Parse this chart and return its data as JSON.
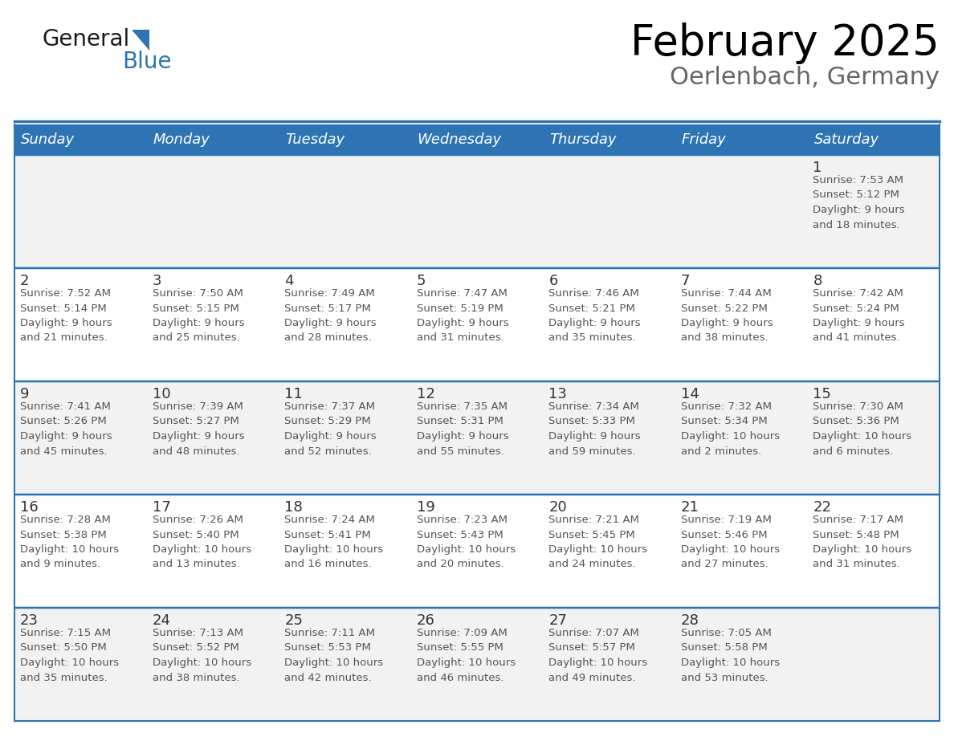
{
  "title": "February 2025",
  "subtitle": "Oerlenbach, Germany",
  "days_of_week": [
    "Sunday",
    "Monday",
    "Tuesday",
    "Wednesday",
    "Thursday",
    "Friday",
    "Saturday"
  ],
  "header_bg": "#2E74B5",
  "header_text_color": "#FFFFFF",
  "cell_bg_odd": "#F2F2F2",
  "cell_bg_even": "#FFFFFF",
  "border_color": "#2E74B5",
  "title_color": "#000000",
  "subtitle_color": "#666666",
  "info_text_color": "#555555",
  "day_num_color": "#333333",
  "logo_blue_color": "#2E74B5",
  "logo_black_color": "#1A1A1A",
  "calendar_data": [
    [
      {
        "day": null,
        "info": null
      },
      {
        "day": null,
        "info": null
      },
      {
        "day": null,
        "info": null
      },
      {
        "day": null,
        "info": null
      },
      {
        "day": null,
        "info": null
      },
      {
        "day": null,
        "info": null
      },
      {
        "day": 1,
        "info": "Sunrise: 7:53 AM\nSunset: 5:12 PM\nDaylight: 9 hours\nand 18 minutes."
      }
    ],
    [
      {
        "day": 2,
        "info": "Sunrise: 7:52 AM\nSunset: 5:14 PM\nDaylight: 9 hours\nand 21 minutes."
      },
      {
        "day": 3,
        "info": "Sunrise: 7:50 AM\nSunset: 5:15 PM\nDaylight: 9 hours\nand 25 minutes."
      },
      {
        "day": 4,
        "info": "Sunrise: 7:49 AM\nSunset: 5:17 PM\nDaylight: 9 hours\nand 28 minutes."
      },
      {
        "day": 5,
        "info": "Sunrise: 7:47 AM\nSunset: 5:19 PM\nDaylight: 9 hours\nand 31 minutes."
      },
      {
        "day": 6,
        "info": "Sunrise: 7:46 AM\nSunset: 5:21 PM\nDaylight: 9 hours\nand 35 minutes."
      },
      {
        "day": 7,
        "info": "Sunrise: 7:44 AM\nSunset: 5:22 PM\nDaylight: 9 hours\nand 38 minutes."
      },
      {
        "day": 8,
        "info": "Sunrise: 7:42 AM\nSunset: 5:24 PM\nDaylight: 9 hours\nand 41 minutes."
      }
    ],
    [
      {
        "day": 9,
        "info": "Sunrise: 7:41 AM\nSunset: 5:26 PM\nDaylight: 9 hours\nand 45 minutes."
      },
      {
        "day": 10,
        "info": "Sunrise: 7:39 AM\nSunset: 5:27 PM\nDaylight: 9 hours\nand 48 minutes."
      },
      {
        "day": 11,
        "info": "Sunrise: 7:37 AM\nSunset: 5:29 PM\nDaylight: 9 hours\nand 52 minutes."
      },
      {
        "day": 12,
        "info": "Sunrise: 7:35 AM\nSunset: 5:31 PM\nDaylight: 9 hours\nand 55 minutes."
      },
      {
        "day": 13,
        "info": "Sunrise: 7:34 AM\nSunset: 5:33 PM\nDaylight: 9 hours\nand 59 minutes."
      },
      {
        "day": 14,
        "info": "Sunrise: 7:32 AM\nSunset: 5:34 PM\nDaylight: 10 hours\nand 2 minutes."
      },
      {
        "day": 15,
        "info": "Sunrise: 7:30 AM\nSunset: 5:36 PM\nDaylight: 10 hours\nand 6 minutes."
      }
    ],
    [
      {
        "day": 16,
        "info": "Sunrise: 7:28 AM\nSunset: 5:38 PM\nDaylight: 10 hours\nand 9 minutes."
      },
      {
        "day": 17,
        "info": "Sunrise: 7:26 AM\nSunset: 5:40 PM\nDaylight: 10 hours\nand 13 minutes."
      },
      {
        "day": 18,
        "info": "Sunrise: 7:24 AM\nSunset: 5:41 PM\nDaylight: 10 hours\nand 16 minutes."
      },
      {
        "day": 19,
        "info": "Sunrise: 7:23 AM\nSunset: 5:43 PM\nDaylight: 10 hours\nand 20 minutes."
      },
      {
        "day": 20,
        "info": "Sunrise: 7:21 AM\nSunset: 5:45 PM\nDaylight: 10 hours\nand 24 minutes."
      },
      {
        "day": 21,
        "info": "Sunrise: 7:19 AM\nSunset: 5:46 PM\nDaylight: 10 hours\nand 27 minutes."
      },
      {
        "day": 22,
        "info": "Sunrise: 7:17 AM\nSunset: 5:48 PM\nDaylight: 10 hours\nand 31 minutes."
      }
    ],
    [
      {
        "day": 23,
        "info": "Sunrise: 7:15 AM\nSunset: 5:50 PM\nDaylight: 10 hours\nand 35 minutes."
      },
      {
        "day": 24,
        "info": "Sunrise: 7:13 AM\nSunset: 5:52 PM\nDaylight: 10 hours\nand 38 minutes."
      },
      {
        "day": 25,
        "info": "Sunrise: 7:11 AM\nSunset: 5:53 PM\nDaylight: 10 hours\nand 42 minutes."
      },
      {
        "day": 26,
        "info": "Sunrise: 7:09 AM\nSunset: 5:55 PM\nDaylight: 10 hours\nand 46 minutes."
      },
      {
        "day": 27,
        "info": "Sunrise: 7:07 AM\nSunset: 5:57 PM\nDaylight: 10 hours\nand 49 minutes."
      },
      {
        "day": 28,
        "info": "Sunrise: 7:05 AM\nSunset: 5:58 PM\nDaylight: 10 hours\nand 53 minutes."
      },
      {
        "day": null,
        "info": null
      }
    ]
  ]
}
